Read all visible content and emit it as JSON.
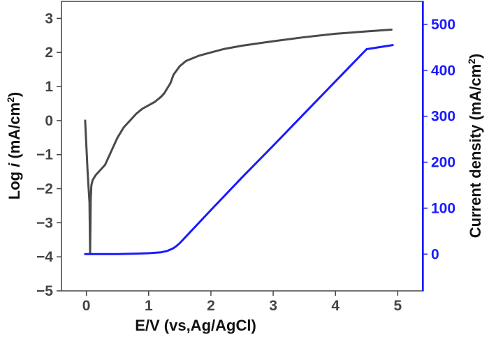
{
  "chart_data": {
    "type": "line",
    "xlabel": "E/V (vs,Ag/AgCl)",
    "ylabel_left": {
      "prefix": "Log ",
      "italic": "i",
      "suffix": " (mA/cm",
      "sup": "2",
      "close": ")"
    },
    "ylabel_right": {
      "prefix": "Current density (mA/cm",
      "sup": "2",
      "close": ")"
    },
    "xlim": [
      -0.4,
      5.4
    ],
    "ylim_left": [
      -5,
      3.5
    ],
    "ylim_right": [
      -80,
      550
    ],
    "x_ticks": [
      0,
      1,
      2,
      3,
      4,
      5
    ],
    "x_tick_labels": [
      "0",
      "1",
      "2",
      "3",
      "4",
      "5"
    ],
    "y_left_ticks": [
      -5,
      -4,
      -3,
      -2,
      -1,
      0,
      1,
      2,
      3
    ],
    "y_left_tick_labels": [
      "−5",
      "−4",
      "−3",
      "−2",
      "−1",
      "0",
      "1",
      "2",
      "3"
    ],
    "y_right_ticks": [
      0,
      100,
      200,
      300,
      400,
      500
    ],
    "y_right_tick_labels": [
      "0",
      "100",
      "200",
      "300",
      "400",
      "500"
    ],
    "grid": false,
    "legend": "none",
    "colors": {
      "left_axis": "#444444",
      "right_axis": "#1a1aff",
      "log_curve": "#4a4a4a",
      "linear_curve": "#1a1aff"
    },
    "series": [
      {
        "axis": "left",
        "x": [
          -0.02,
          0.02,
          0.05,
          0.06,
          0.07,
          0.08,
          0.1,
          0.15,
          0.2,
          0.3,
          0.4,
          0.5,
          0.6,
          0.7,
          0.8,
          0.9,
          1.0,
          1.1,
          1.2,
          1.25,
          1.3,
          1.35,
          1.4,
          1.5,
          1.6,
          1.8,
          2.0,
          2.2,
          2.5,
          3.0,
          3.5,
          4.0,
          4.5,
          4.9
        ],
        "y": [
          0.0,
          -1.5,
          -2.4,
          -3.9,
          -2.3,
          -1.9,
          -1.75,
          -1.6,
          -1.5,
          -1.3,
          -0.9,
          -0.5,
          -0.2,
          0.0,
          0.2,
          0.35,
          0.45,
          0.55,
          0.7,
          0.8,
          0.95,
          1.1,
          1.35,
          1.6,
          1.75,
          1.9,
          2.0,
          2.1,
          2.2,
          2.33,
          2.45,
          2.55,
          2.62,
          2.67
        ]
      },
      {
        "axis": "right",
        "x": [
          -0.02,
          0.5,
          0.8,
          1.0,
          1.2,
          1.3,
          1.4,
          1.45,
          1.5,
          2.0,
          2.5,
          3.0,
          3.5,
          4.0,
          4.5,
          4.92
        ],
        "y": [
          0,
          0,
          1,
          2,
          4,
          7,
          13,
          18,
          24,
          96,
          167,
          236,
          306,
          376,
          446,
          455
        ]
      }
    ]
  }
}
